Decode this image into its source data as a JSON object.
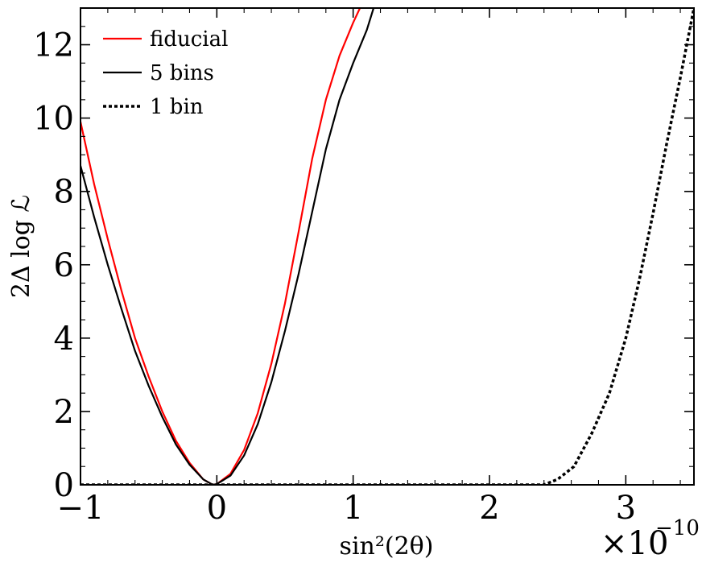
{
  "chart_data": {
    "type": "line",
    "xlabel": "sin²(2θ)",
    "ylabel": "2Δ log ℒ",
    "x_multiplier": "×10",
    "x_multiplier_exponent": "−10",
    "xlim": [
      -1.0,
      3.5
    ],
    "ylim": [
      0,
      13
    ],
    "x_ticks": [
      -1,
      0,
      1,
      2,
      3
    ],
    "x_tick_labels": [
      "−1",
      "0",
      "1",
      "2",
      "3"
    ],
    "y_ticks": [
      0,
      2,
      4,
      6,
      8,
      10,
      12
    ],
    "y_tick_labels": [
      "0",
      "2",
      "4",
      "6",
      "8",
      "10",
      "12"
    ],
    "legend_position": "top-left",
    "grid": false,
    "series": [
      {
        "name": "fiducial",
        "color": "#ff0000",
        "style": "solid",
        "x": [
          -1.0,
          -0.9,
          -0.8,
          -0.7,
          -0.6,
          -0.5,
          -0.4,
          -0.3,
          -0.2,
          -0.1,
          -0.03,
          0.0,
          0.1,
          0.2,
          0.3,
          0.4,
          0.5,
          0.6,
          0.7,
          0.8,
          0.9,
          1.0,
          1.05
        ],
        "y": [
          9.9,
          8.2,
          6.7,
          5.3,
          4.0,
          2.95,
          2.0,
          1.2,
          0.6,
          0.15,
          0.0,
          0.02,
          0.3,
          0.95,
          1.95,
          3.3,
          4.95,
          6.9,
          8.9,
          10.5,
          11.7,
          12.6,
          13.0
        ]
      },
      {
        "name": "5 bins",
        "color": "#000000",
        "style": "solid",
        "x": [
          -1.0,
          -0.9,
          -0.8,
          -0.7,
          -0.6,
          -0.5,
          -0.4,
          -0.3,
          -0.2,
          -0.1,
          -0.03,
          0.0,
          0.1,
          0.2,
          0.3,
          0.4,
          0.5,
          0.6,
          0.7,
          0.8,
          0.9,
          1.0,
          1.1,
          1.15
        ],
        "y": [
          8.7,
          7.3,
          6.0,
          4.8,
          3.65,
          2.7,
          1.85,
          1.1,
          0.55,
          0.15,
          0.0,
          0.02,
          0.25,
          0.8,
          1.65,
          2.8,
          4.2,
          5.75,
          7.45,
          9.15,
          10.5,
          11.5,
          12.4,
          13.0
        ]
      },
      {
        "name": "1 bin",
        "color": "#000000",
        "style": "dotted",
        "x": [
          -1.0,
          2.0,
          2.4,
          2.5,
          2.62,
          2.75,
          2.88,
          3.0,
          3.1,
          3.2,
          3.3,
          3.4,
          3.5
        ],
        "y": [
          0.0,
          0.0,
          0.0,
          0.15,
          0.5,
          1.4,
          2.5,
          4.0,
          5.6,
          7.4,
          9.3,
          11.1,
          13.0
        ]
      }
    ]
  }
}
